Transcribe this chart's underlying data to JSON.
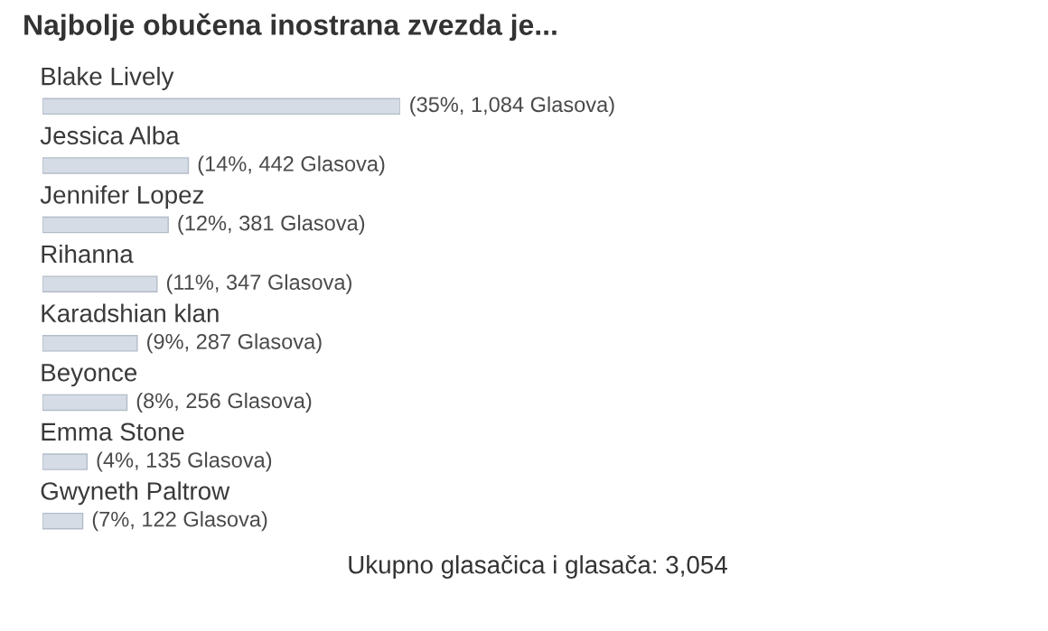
{
  "chart_data": {
    "type": "bar",
    "orientation": "horizontal",
    "title": "Najbolje obučena inostrana zvezda je...",
    "categories": [
      "Blake Lively",
      "Jessica Alba",
      "Jennifer Lopez",
      "Rihanna",
      "Karadshian klan",
      "Beyonce",
      "Emma Stone",
      "Gwyneth Paltrow"
    ],
    "values": [
      1084,
      442,
      381,
      347,
      287,
      256,
      135,
      122
    ],
    "value_labels": [
      "(35%, 1,084 Glasova)",
      "(14%, 442 Glasova)",
      "(12%, 381 Glasova)",
      "(11%, 347 Glasova)",
      "(9%, 287 Glasova)",
      "(8%, 256 Glasova)",
      "(4%, 135 Glasova)",
      "(7%, 122 Glasova)"
    ],
    "color": "#d5dce6",
    "annotations": [
      "Ukupno glasačica i glasača: 3,054"
    ]
  }
}
